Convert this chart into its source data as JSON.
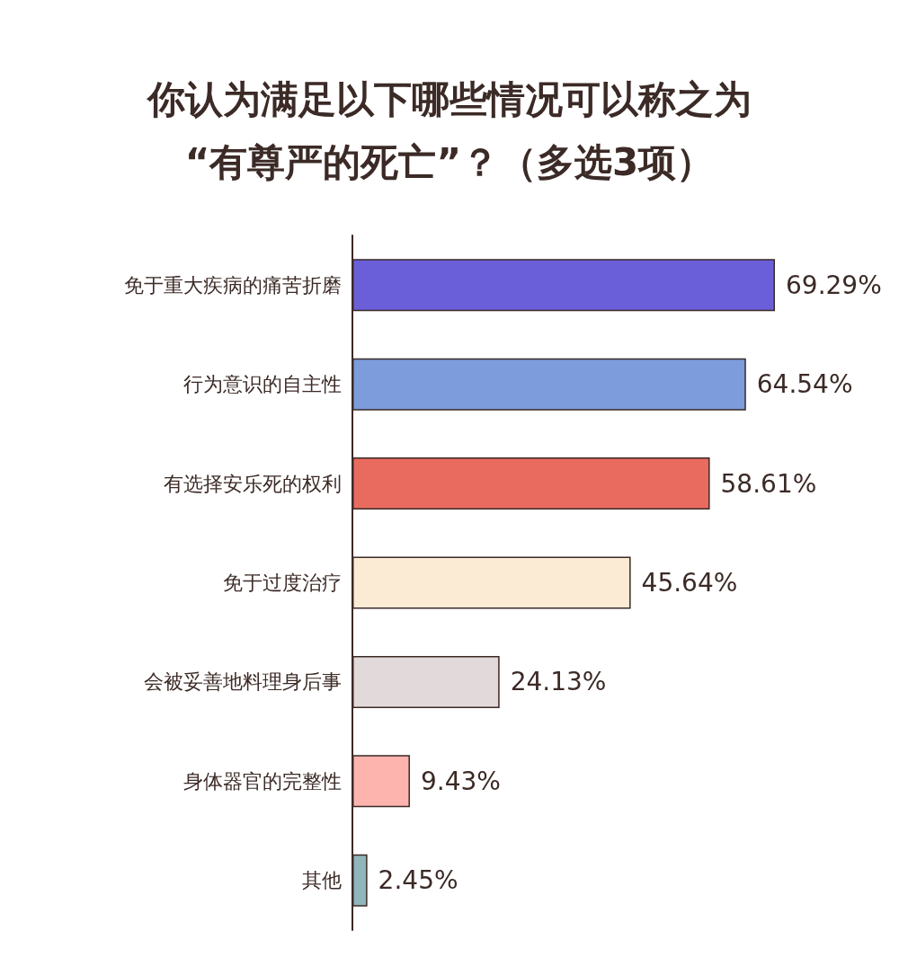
{
  "chart_data": {
    "type": "bar",
    "orientation": "horizontal",
    "title": "你认为满足以下哪些情况可以称之为\n“有尊严的死亡”？（多选3项）",
    "categories": [
      "免于重大疾病的痛苦折磨",
      "行为意识的自主性",
      "有选择安乐死的权利",
      "免于过度治疗",
      "会被妥善地料理身后事",
      "身体器官的完整性",
      "其他"
    ],
    "values": [
      69.29,
      64.54,
      58.61,
      45.64,
      24.13,
      9.43,
      2.45
    ],
    "colors": [
      "#6b5fd9",
      "#7c9cdc",
      "#e96b5f",
      "#fcebd4",
      "#e2d9da",
      "#fdb4ae",
      "#8fb6ba"
    ],
    "value_labels": [
      "69.29%",
      "64.54%",
      "58.61%",
      "45.64%",
      "24.13%",
      "9.43%",
      "2.45%"
    ]
  }
}
